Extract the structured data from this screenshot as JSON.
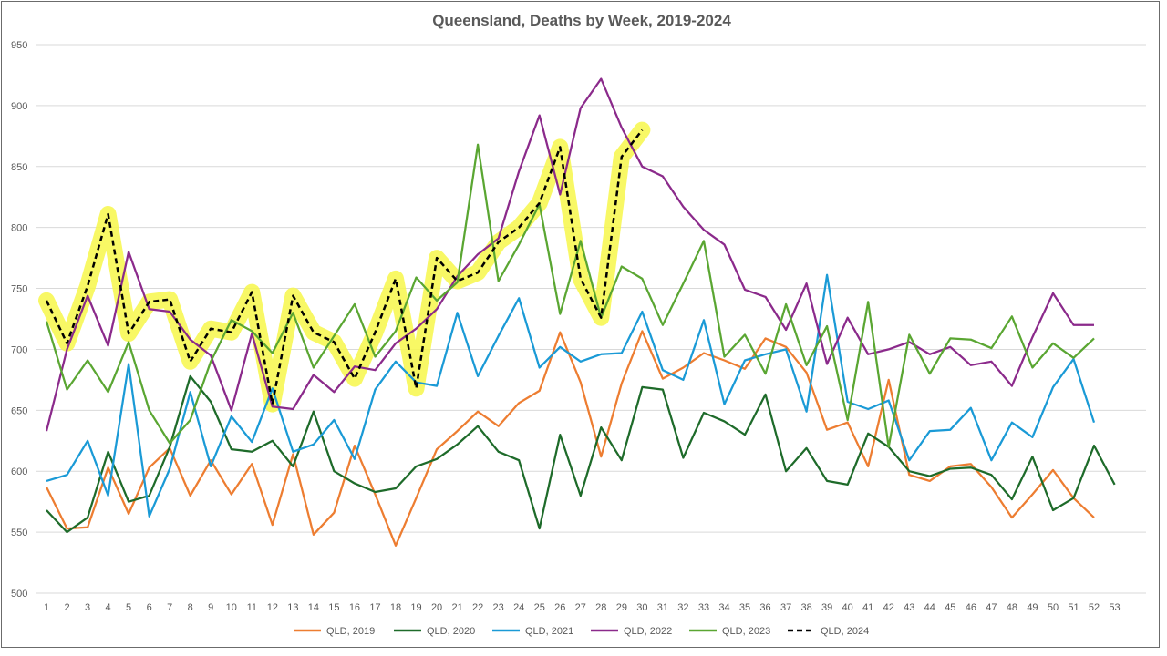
{
  "chart_data": {
    "type": "line",
    "title": "Queensland, Deaths by Week, 2019-2024",
    "xlabel": "",
    "ylabel": "",
    "ylim": [
      500,
      950
    ],
    "yticks": [
      500,
      550,
      600,
      650,
      700,
      750,
      800,
      850,
      900,
      950
    ],
    "x": [
      1,
      2,
      3,
      4,
      5,
      6,
      7,
      8,
      9,
      10,
      11,
      12,
      13,
      14,
      15,
      16,
      17,
      18,
      19,
      20,
      21,
      22,
      23,
      24,
      25,
      26,
      27,
      28,
      29,
      30,
      31,
      32,
      33,
      34,
      35,
      36,
      37,
      38,
      39,
      40,
      41,
      42,
      43,
      44,
      45,
      46,
      47,
      48,
      49,
      50,
      51,
      52,
      53
    ],
    "grid": "horizontal",
    "legend_position": "bottom",
    "highlight": {
      "series": "QLD, 2024",
      "color": "#f7f74a"
    },
    "series": [
      {
        "name": "QLD, 2019",
        "color": "#ed7d31",
        "style": "solid",
        "values": [
          587,
          553,
          554,
          603,
          565,
          603,
          619,
          580,
          609,
          581,
          606,
          556,
          614,
          548,
          566,
          621,
          581,
          539,
          578,
          618,
          633,
          649,
          637,
          656,
          666,
          714,
          673,
          612,
          672,
          715,
          676,
          685,
          697,
          691,
          684,
          709,
          702,
          681,
          634,
          640,
          604,
          675,
          597,
          592,
          604,
          606,
          587,
          562,
          581,
          601,
          578,
          562,
          null
        ]
      },
      {
        "name": "QLD, 2020",
        "color": "#1e6b2a",
        "style": "solid",
        "values": [
          568,
          550,
          562,
          616,
          575,
          580,
          620,
          678,
          657,
          618,
          616,
          625,
          604,
          649,
          600,
          590,
          583,
          586,
          604,
          610,
          622,
          637,
          616,
          609,
          553,
          630,
          580,
          636,
          609,
          669,
          667,
          611,
          648,
          641,
          630,
          663,
          600,
          619,
          592,
          589,
          631,
          620,
          600,
          596,
          602,
          603,
          597,
          577,
          612,
          568,
          578,
          621,
          589
        ]
      },
      {
        "name": "QLD, 2021",
        "color": "#1a9ad6",
        "style": "solid",
        "values": [
          592,
          597,
          625,
          580,
          688,
          563,
          602,
          665,
          604,
          645,
          624,
          668,
          616,
          622,
          642,
          610,
          667,
          690,
          673,
          670,
          730,
          678,
          711,
          742,
          685,
          702,
          690,
          696,
          697,
          731,
          683,
          675,
          724,
          655,
          691,
          696,
          700,
          649,
          761,
          657,
          651,
          658,
          609,
          633,
          634,
          652,
          609,
          640,
          628,
          669,
          692,
          640,
          null
        ]
      },
      {
        "name": "QLD, 2022",
        "color": "#8b2a8b",
        "style": "solid",
        "values": [
          633,
          700,
          744,
          703,
          780,
          733,
          731,
          708,
          695,
          650,
          713,
          653,
          651,
          679,
          665,
          686,
          683,
          705,
          717,
          733,
          760,
          778,
          791,
          846,
          892,
          827,
          898,
          922,
          882,
          850,
          842,
          817,
          798,
          786,
          749,
          743,
          716,
          754,
          688,
          726,
          696,
          700,
          706,
          696,
          702,
          687,
          690,
          670,
          710,
          746,
          720,
          720,
          null
        ]
      },
      {
        "name": "QLD, 2023",
        "color": "#5aa632",
        "style": "solid",
        "values": [
          723,
          667,
          691,
          665,
          706,
          650,
          623,
          642,
          690,
          724,
          715,
          697,
          730,
          685,
          711,
          737,
          694,
          715,
          759,
          740,
          755,
          868,
          756,
          786,
          819,
          729,
          789,
          726,
          768,
          758,
          720,
          754,
          789,
          694,
          712,
          680,
          737,
          687,
          719,
          642,
          739,
          620,
          712,
          680,
          709,
          708,
          701,
          727,
          685,
          705,
          693,
          709,
          null
        ]
      },
      {
        "name": "QLD, 2024",
        "color": "#000000",
        "style": "dashed",
        "values": [
          740,
          705,
          752,
          811,
          713,
          739,
          741,
          690,
          717,
          714,
          747,
          655,
          744,
          714,
          706,
          676,
          714,
          758,
          668,
          775,
          756,
          763,
          788,
          800,
          820,
          866,
          758,
          726,
          858,
          880,
          null,
          null,
          null,
          null,
          null,
          null,
          null,
          null,
          null,
          null,
          null,
          null,
          null,
          null,
          null,
          null,
          null,
          null,
          null,
          null,
          null,
          null,
          null
        ]
      }
    ]
  }
}
